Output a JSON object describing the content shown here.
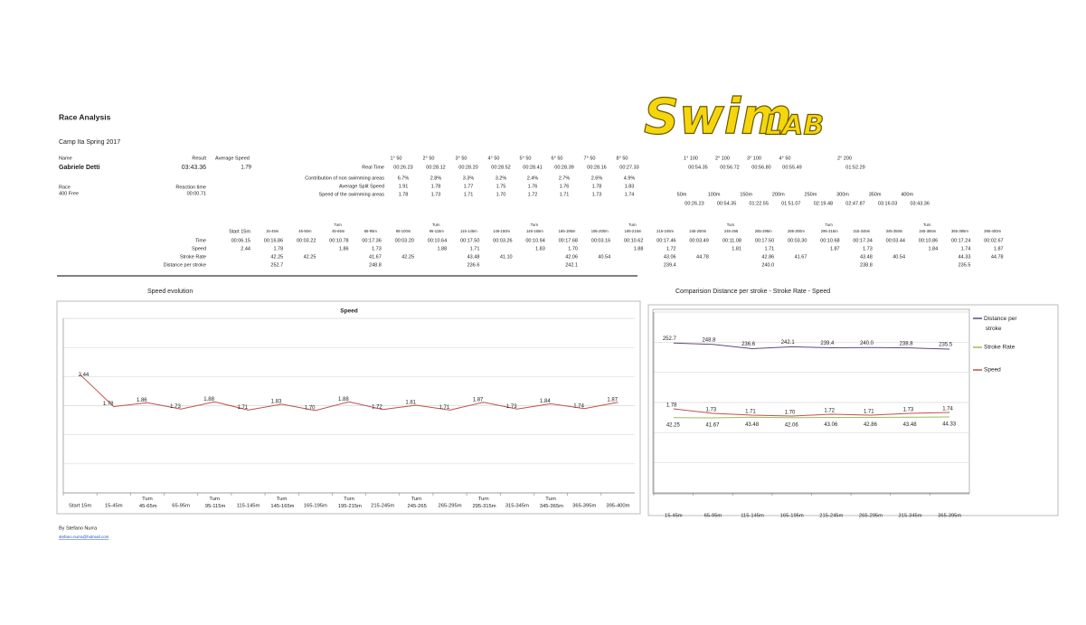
{
  "header": {
    "title": "Race Analysis",
    "subtitle": "Camp Ita Spring 2017",
    "logo": {
      "main": "Swim",
      "accent": "LAB"
    }
  },
  "athlete": {
    "name_label": "Name",
    "name": "Gabriele Detti",
    "result_label": "Result",
    "result": "03:43.36",
    "avg_speed_label": "Average Speed",
    "avg_speed": "1.79",
    "race_label": "Race",
    "race": "400 Free",
    "reaction_label": "Reaction time",
    "reaction": "00:00.71"
  },
  "splits50": {
    "headers": [
      "1° 50",
      "2° 50",
      "3° 50",
      "4° 50",
      "5° 50",
      "6° 50",
      "7° 50",
      "8° 50"
    ],
    "rows": [
      {
        "label": "Real Time",
        "cells": [
          "00:26.23",
          "00:28.12",
          "00:28.20",
          "00:28.52",
          "00:28.41",
          "00:28.39",
          "00:28.16",
          "00:27.33"
        ]
      },
      {
        "label": "Contribution of non swimming areas",
        "cells": [
          "6.7%",
          "2.8%",
          "3.3%",
          "3.2%",
          "2.4%",
          "2.7%",
          "2.6%",
          "4.9%"
        ]
      },
      {
        "label": "Average Split Speed",
        "cells": [
          "1.91",
          "1.78",
          "1.77",
          "1.75",
          "1.76",
          "1.76",
          "1.78",
          "1.83"
        ]
      },
      {
        "label": "Speed of the swimming areas",
        "cells": [
          "1.78",
          "1.73",
          "1.71",
          "1.70",
          "1.72",
          "1.71",
          "1.73",
          "1.74"
        ]
      }
    ]
  },
  "splits100": {
    "headers": [
      "1° 100",
      "2° 100",
      "3° 100",
      "4° 50"
    ],
    "values": [
      "00:54.35",
      "00:56.72",
      "00:56.80",
      "00:55.49"
    ],
    "header200": "2° 200",
    "value200": "01:52.29"
  },
  "cumulative": {
    "headers": [
      "50m",
      "100m",
      "150m",
      "200m",
      "250m",
      "300m",
      "350m",
      "400m"
    ],
    "values": [
      "00:26.23",
      "00:54.35",
      "01:22.55",
      "01:51.07",
      "02:19.48",
      "02:47.87",
      "03:16.03",
      "03:43.36"
    ]
  },
  "segments": {
    "headers": [
      "Start 15m",
      "15-45m",
      "45-50m",
      "Turn 45-65m",
      "65-95m",
      "95-100m",
      "Turn 95-115m",
      "115-145m",
      "145-150m",
      "Turn 145-165m",
      "165-195m",
      "195-200m",
      "Turn 195-215m",
      "215-245m",
      "245-250m",
      "Turn 245-265",
      "265-295m",
      "295-300m",
      "Turn 295-315m",
      "315-345m",
      "345-350m",
      "Turn 345-365m",
      "365-395m",
      "395-400m"
    ],
    "rows": [
      {
        "label": "Time",
        "cells": [
          "00:06.15",
          "00:16.86",
          "00:03.22",
          "00:10.78",
          "00:17.36",
          "00:03.20",
          "00:10.64",
          "00:17.50",
          "00:03.26",
          "00:10.94",
          "00:17.68",
          "00:03.16",
          "00:10.62",
          "00:17.46",
          "00:03.49",
          "00:11.08",
          "00:17.50",
          "00:03.30",
          "00:10.68",
          "00:17.34",
          "00:03.44",
          "00:10.86",
          "00:17.24",
          "00:02.67"
        ]
      },
      {
        "label": "Speed",
        "cells": [
          "2.44",
          "1.78",
          null,
          "1.86",
          "1.73",
          null,
          "1.88",
          "1.71",
          null,
          "1.83",
          "1.70",
          null,
          "1.88",
          "1.72",
          null,
          "1.81",
          "1.71",
          null,
          "1.87",
          "1.73",
          null,
          "1.84",
          "1.74",
          "1.87"
        ]
      },
      {
        "label": "Stroke Rate",
        "cells": [
          null,
          "42.25",
          "42.25",
          null,
          "41.67",
          "42.25",
          null,
          "43.48",
          "41.10",
          null,
          "42.06",
          "40.54",
          null,
          "43.06",
          "44.78",
          null,
          "42.86",
          "41.67",
          null,
          "43.48",
          "40.54",
          null,
          "44.33",
          "44.78"
        ]
      },
      {
        "label": "Distance per stroke",
        "cells": [
          null,
          "252.7",
          null,
          null,
          "248.8",
          null,
          null,
          "236.6",
          null,
          null,
          "242.1",
          null,
          null,
          "239.4",
          null,
          null,
          "240.0",
          null,
          null,
          "238.8",
          null,
          null,
          "235.5",
          null
        ]
      }
    ]
  },
  "sections": {
    "speed": "Speed evolution",
    "comparison": "Comparision  Distance per stroke - Stroke Rate - Speed"
  },
  "chart_data": [
    {
      "type": "line",
      "title": "Speed",
      "color": "#c0504d",
      "categories": [
        "Start 15m",
        "15-45m",
        "Turn 45-65m",
        "65-95m",
        "Turn 95-115m",
        "115-145m",
        "Turn 145-165m",
        "165-195m",
        "Turn 195-215m",
        "215-245m",
        "Turn 245-265",
        "265-295m",
        "Turn 295-315m",
        "315-345m",
        "Turn 345-365m",
        "365-395m",
        "395-400m"
      ],
      "values": [
        2.44,
        1.78,
        1.86,
        1.73,
        1.88,
        1.71,
        1.83,
        1.7,
        1.88,
        1.72,
        1.81,
        1.71,
        1.87,
        1.73,
        1.84,
        1.74,
        1.87
      ],
      "value_labels": [
        "2.44",
        "1.78",
        "1.86",
        "1.73",
        "1.88",
        "1.71",
        "1.83",
        "1.70",
        "1.88",
        "1.72",
        "1.81",
        "1.71",
        "1.87",
        "1.73",
        "1.84",
        "1.74",
        "1.87"
      ],
      "ylim": [
        0,
        3.6
      ],
      "grid": true
    },
    {
      "type": "line",
      "legend": "right",
      "categories": [
        "15-45m",
        "65-95m",
        "115-145m",
        "165-195m",
        "215-245m",
        "265-295m",
        "315-345m",
        "365-395m"
      ],
      "series": [
        {
          "name": "Distance per stroke",
          "color": "#604a7b",
          "values": [
            252.7,
            248.8,
            236.6,
            242.1,
            239.4,
            240.0,
            238.8,
            235.5
          ],
          "value_labels": [
            "252.7",
            "248.8",
            "236.6",
            "242.1",
            "239.4",
            "240.0",
            "238.8",
            "235.5"
          ]
        },
        {
          "name": "Stroke Rate",
          "color": "#9bbb59",
          "values": [
            42.25,
            41.67,
            43.48,
            42.06,
            43.06,
            42.86,
            43.48,
            44.33
          ]
        },
        {
          "name": "Speed",
          "color": "#c0504d",
          "axis": "y2",
          "values": [
            1.78,
            1.73,
            1.71,
            1.7,
            1.72,
            1.71,
            1.73,
            1.74
          ],
          "value_labels": [
            "1.78",
            "1.73",
            "1.71",
            "1.70",
            "1.72",
            "1.71",
            "1.73",
            "1.74"
          ]
        }
      ],
      "ylim": [
        -170,
        340
      ],
      "y2lim": [
        0.85,
        2.85
      ],
      "grid": true
    }
  ],
  "footer": {
    "author": "By Stefano Nurra",
    "email": "stefano.nurra@hotmail.com"
  }
}
